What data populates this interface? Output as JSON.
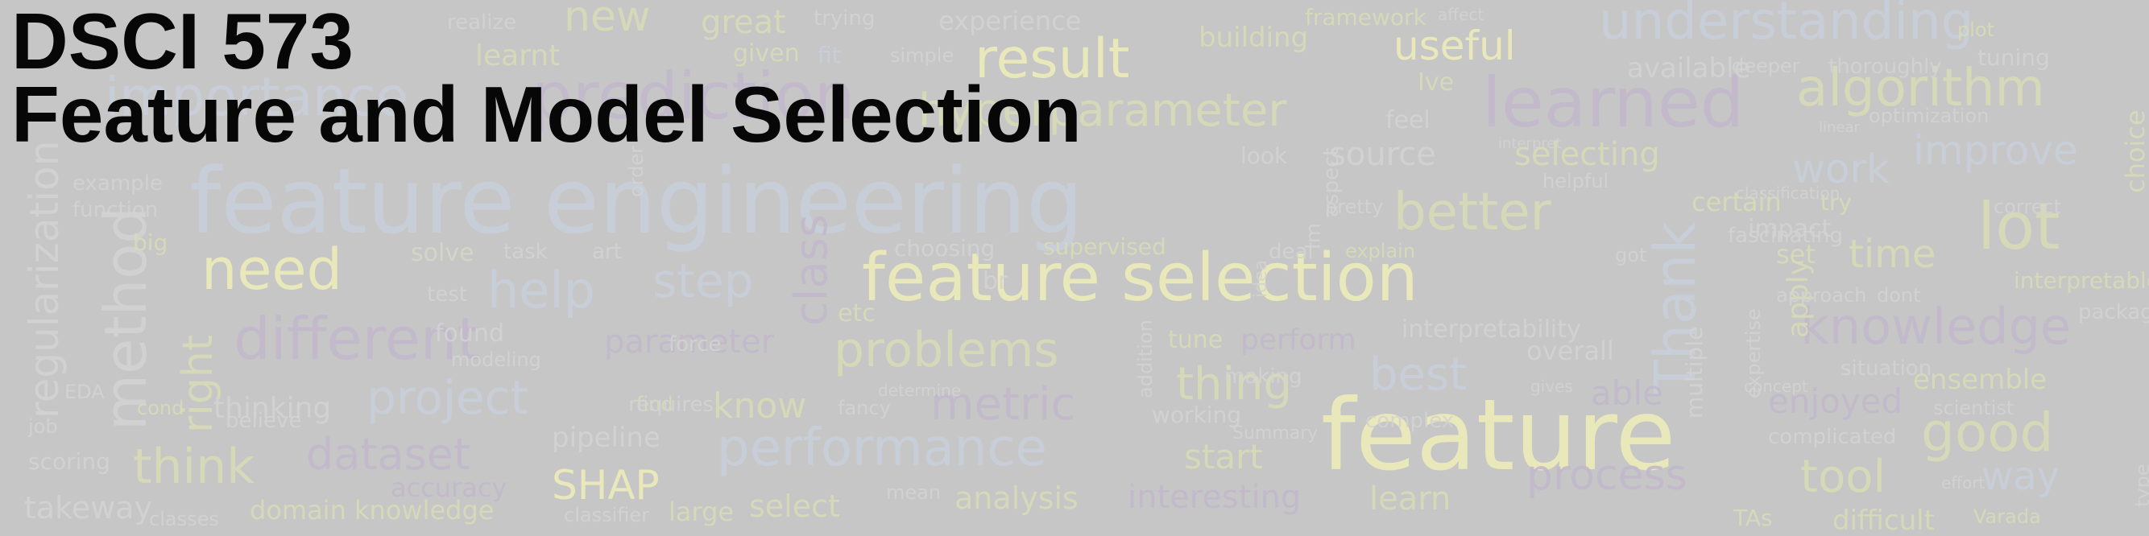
{
  "title": {
    "line1": "DSCI 573",
    "line2": "Feature and Model Selection"
  },
  "colors": {
    "background": "#c6c6c6",
    "title": "#070707"
  },
  "word_cloud": {
    "words": [
      "feature engineering",
      "feature selection",
      "feature",
      "performance",
      "understanding",
      "learned",
      "algorithm",
      "result",
      "useful",
      "hyperparameter",
      "prediction",
      "importance",
      "different",
      "dataset",
      "better",
      "Thank",
      "lot",
      "knowledge",
      "good",
      "time",
      "work",
      "improve",
      "need",
      "help",
      "problems",
      "thing",
      "best",
      "metric",
      "project",
      "think",
      "SHAP",
      "analysis",
      "interesting",
      "process",
      "tool",
      "way",
      "enjoyed",
      "able",
      "ensemble",
      "learn",
      "select",
      "start",
      "pipeline",
      "accuracy",
      "know",
      "right",
      "method",
      "regularization",
      "new",
      "great",
      "source",
      "selecting",
      "certain",
      "building",
      "available",
      "optimization",
      "linear",
      "Ive",
      "feel",
      "look",
      "interpret",
      "helpful",
      "example",
      "function",
      "big",
      "solve",
      "task",
      "art",
      "choosing",
      "supervised",
      "deal",
      "explain",
      "pretty",
      "interpretability",
      "perform",
      "tune",
      "parameter",
      "found",
      "test",
      "etc",
      "class",
      "step",
      "find",
      "requires",
      "determine",
      "fancy",
      "working",
      "Summary",
      "mean",
      "classes",
      "domain knowledge",
      "takeway",
      "scoring",
      "job",
      "EDA",
      "believe",
      "thinking",
      "cond",
      "classifier",
      "large",
      "learnt",
      "given",
      "fit",
      "simple",
      "trying",
      "experience",
      "realize",
      "framework",
      "affect",
      "plot",
      "tuning",
      "deeper",
      "thoroughly",
      "choice",
      "interpretable",
      "packages",
      "situation",
      "scientist",
      "complicated",
      "effort",
      "Varada",
      "TAs",
      "difficult",
      "set",
      "apply",
      "approach",
      "dont",
      "impact",
      "fascinating",
      "try",
      "overall",
      "gives",
      "complex",
      "making",
      "addition",
      "idea",
      "expertise",
      "multiple",
      "concept",
      "got",
      "Im",
      "br",
      "classification",
      "correct",
      "type",
      "aspect",
      "order",
      "modeling",
      "force"
    ]
  }
}
